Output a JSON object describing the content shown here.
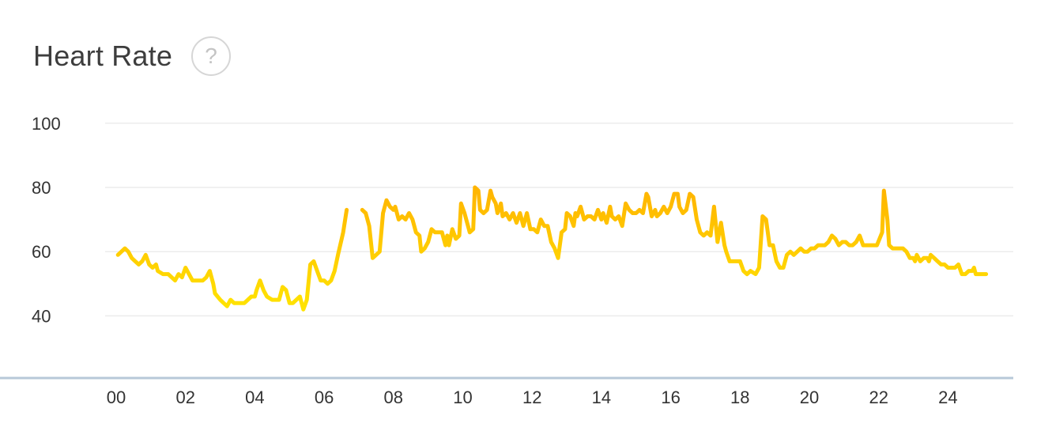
{
  "header": {
    "title": "Heart Rate",
    "help_label": "?"
  },
  "colors": {
    "line_low": "#ffe600",
    "line_high": "#ffb400",
    "grid": "#ececec",
    "baseline": "#b7c8d8",
    "tick_text": "#333333"
  },
  "chart_data": {
    "type": "line",
    "title": "Heart Rate",
    "xlabel": "",
    "ylabel": "",
    "xlim": [
      0,
      24
    ],
    "ylim": [
      30,
      100
    ],
    "y_ticks": [
      100,
      80,
      60,
      40
    ],
    "x_ticks": [
      "00",
      "02",
      "04",
      "06",
      "08",
      "10",
      "12",
      "14",
      "16",
      "18",
      "20",
      "22",
      "24"
    ],
    "grid": true,
    "series": [
      {
        "segments": [
          [
            [
              0.05,
              59
            ],
            [
              0.15,
              60
            ],
            [
              0.25,
              61
            ],
            [
              0.35,
              60
            ],
            [
              0.45,
              58
            ],
            [
              0.55,
              57
            ],
            [
              0.65,
              56
            ],
            [
              0.75,
              57
            ],
            [
              0.85,
              59
            ],
            [
              0.95,
              56
            ],
            [
              1.05,
              55
            ],
            [
              1.15,
              56
            ],
            [
              1.2,
              54
            ],
            [
              1.35,
              53
            ],
            [
              1.5,
              53
            ],
            [
              1.6,
              52
            ],
            [
              1.7,
              51
            ],
            [
              1.8,
              53
            ],
            [
              1.9,
              52
            ],
            [
              2.0,
              55
            ],
            [
              2.1,
              53
            ],
            [
              2.2,
              51
            ],
            [
              2.35,
              51
            ],
            [
              2.5,
              51
            ],
            [
              2.6,
              52
            ],
            [
              2.7,
              54
            ],
            [
              2.8,
              50
            ],
            [
              2.85,
              47
            ],
            [
              3.0,
              45
            ],
            [
              3.1,
              44
            ],
            [
              3.2,
              43
            ],
            [
              3.3,
              45
            ],
            [
              3.4,
              44
            ],
            [
              3.5,
              44
            ],
            [
              3.6,
              44
            ],
            [
              3.7,
              44
            ],
            [
              3.8,
              45
            ],
            [
              3.9,
              46
            ],
            [
              4.0,
              46
            ],
            [
              4.05,
              48
            ],
            [
              4.15,
              51
            ],
            [
              4.25,
              48
            ],
            [
              4.35,
              46
            ],
            [
              4.5,
              45
            ],
            [
              4.6,
              45
            ],
            [
              4.7,
              45
            ],
            [
              4.8,
              49
            ],
            [
              4.9,
              48
            ],
            [
              5.0,
              44
            ],
            [
              5.1,
              44
            ],
            [
              5.2,
              45
            ],
            [
              5.3,
              46
            ],
            [
              5.4,
              42
            ],
            [
              5.5,
              45
            ],
            [
              5.6,
              56
            ],
            [
              5.7,
              57
            ],
            [
              5.8,
              54
            ],
            [
              5.9,
              51
            ],
            [
              6.0,
              51
            ],
            [
              6.1,
              50
            ],
            [
              6.2,
              51
            ],
            [
              6.3,
              54
            ],
            [
              6.4,
              59
            ],
            [
              6.55,
              66
            ],
            [
              6.65,
              73
            ]
          ],
          [
            [
              7.1,
              73
            ],
            [
              7.2,
              72
            ],
            [
              7.3,
              68
            ],
            [
              7.4,
              58
            ],
            [
              7.5,
              59
            ],
            [
              7.6,
              60
            ],
            [
              7.7,
              72
            ],
            [
              7.8,
              76
            ],
            [
              7.9,
              74
            ],
            [
              8.0,
              73
            ],
            [
              8.05,
              74
            ],
            [
              8.15,
              70
            ],
            [
              8.25,
              71
            ],
            [
              8.35,
              70
            ],
            [
              8.45,
              72
            ],
            [
              8.55,
              70
            ],
            [
              8.65,
              66
            ],
            [
              8.75,
              65
            ],
            [
              8.8,
              60
            ],
            [
              8.9,
              61
            ],
            [
              9.0,
              63
            ],
            [
              9.1,
              67
            ],
            [
              9.2,
              66
            ],
            [
              9.3,
              66
            ],
            [
              9.4,
              66
            ],
            [
              9.5,
              62
            ],
            [
              9.55,
              65
            ],
            [
              9.6,
              62
            ],
            [
              9.7,
              67
            ],
            [
              9.8,
              64
            ],
            [
              9.9,
              65
            ],
            [
              9.95,
              75
            ],
            [
              10.05,
              72
            ],
            [
              10.15,
              68
            ],
            [
              10.2,
              66
            ],
            [
              10.3,
              67
            ],
            [
              10.35,
              80
            ],
            [
              10.45,
              79
            ],
            [
              10.5,
              73
            ],
            [
              10.6,
              72
            ],
            [
              10.7,
              73
            ],
            [
              10.8,
              79
            ],
            [
              10.85,
              77
            ],
            [
              10.95,
              75
            ],
            [
              11.0,
              72
            ],
            [
              11.1,
              75
            ],
            [
              11.15,
              71
            ],
            [
              11.25,
              72
            ],
            [
              11.35,
              70
            ],
            [
              11.45,
              72
            ],
            [
              11.55,
              69
            ],
            [
              11.65,
              72
            ],
            [
              11.75,
              68
            ],
            [
              11.85,
              72
            ],
            [
              11.95,
              67
            ],
            [
              12.05,
              67
            ],
            [
              12.15,
              66
            ],
            [
              12.25,
              70
            ],
            [
              12.35,
              68
            ],
            [
              12.45,
              68
            ],
            [
              12.55,
              63
            ],
            [
              12.65,
              61
            ],
            [
              12.75,
              58
            ],
            [
              12.85,
              66
            ],
            [
              12.95,
              67
            ],
            [
              13.0,
              72
            ],
            [
              13.1,
              71
            ],
            [
              13.2,
              68
            ],
            [
              13.25,
              72
            ],
            [
              13.3,
              71
            ],
            [
              13.4,
              74
            ],
            [
              13.5,
              70
            ],
            [
              13.6,
              71
            ],
            [
              13.7,
              71
            ],
            [
              13.8,
              70
            ],
            [
              13.9,
              73
            ],
            [
              14.0,
              70
            ],
            [
              14.05,
              72
            ],
            [
              14.15,
              69
            ],
            [
              14.25,
              74
            ],
            [
              14.3,
              71
            ],
            [
              14.4,
              70
            ],
            [
              14.5,
              71
            ],
            [
              14.6,
              68
            ],
            [
              14.7,
              75
            ],
            [
              14.8,
              73
            ],
            [
              14.9,
              72
            ],
            [
              15.0,
              72
            ],
            [
              15.1,
              73
            ],
            [
              15.2,
              72
            ],
            [
              15.3,
              78
            ],
            [
              15.35,
              77
            ],
            [
              15.45,
              71
            ],
            [
              15.55,
              73
            ],
            [
              15.6,
              71
            ],
            [
              15.7,
              72
            ],
            [
              15.8,
              74
            ],
            [
              15.9,
              72
            ],
            [
              16.0,
              74
            ],
            [
              16.1,
              78
            ],
            [
              16.2,
              78
            ],
            [
              16.25,
              74
            ],
            [
              16.35,
              72
            ],
            [
              16.45,
              73
            ],
            [
              16.55,
              78
            ],
            [
              16.65,
              77
            ],
            [
              16.75,
              70
            ],
            [
              16.85,
              66
            ],
            [
              16.95,
              65
            ],
            [
              17.05,
              66
            ],
            [
              17.15,
              65
            ],
            [
              17.25,
              74
            ],
            [
              17.35,
              63
            ],
            [
              17.45,
              69
            ],
            [
              17.55,
              62
            ],
            [
              17.6,
              60
            ],
            [
              17.7,
              57
            ],
            [
              17.9,
              57
            ],
            [
              18.0,
              57
            ],
            [
              18.1,
              54
            ],
            [
              18.2,
              53
            ],
            [
              18.3,
              54
            ],
            [
              18.45,
              53
            ],
            [
              18.55,
              55
            ],
            [
              18.65,
              71
            ],
            [
              18.75,
              70
            ],
            [
              18.85,
              62
            ],
            [
              18.95,
              62
            ],
            [
              19.05,
              57
            ],
            [
              19.15,
              55
            ],
            [
              19.25,
              55
            ],
            [
              19.35,
              59
            ],
            [
              19.45,
              60
            ],
            [
              19.55,
              59
            ],
            [
              19.65,
              60
            ],
            [
              19.75,
              61
            ],
            [
              19.85,
              60
            ],
            [
              19.95,
              60
            ],
            [
              20.05,
              61
            ],
            [
              20.15,
              61
            ],
            [
              20.25,
              62
            ],
            [
              20.35,
              62
            ],
            [
              20.45,
              62
            ],
            [
              20.55,
              63
            ],
            [
              20.65,
              65
            ],
            [
              20.75,
              64
            ],
            [
              20.85,
              62
            ],
            [
              20.95,
              63
            ],
            [
              21.05,
              63
            ],
            [
              21.15,
              62
            ],
            [
              21.25,
              62
            ],
            [
              21.35,
              63
            ],
            [
              21.45,
              65
            ],
            [
              21.55,
              62
            ],
            [
              21.65,
              62
            ],
            [
              21.75,
              62
            ],
            [
              21.85,
              62
            ],
            [
              21.95,
              62
            ],
            [
              22.1,
              66
            ],
            [
              22.15,
              79
            ],
            [
              22.25,
              70
            ],
            [
              22.3,
              62
            ],
            [
              22.4,
              61
            ],
            [
              22.5,
              61
            ],
            [
              22.6,
              61
            ],
            [
              22.7,
              61
            ],
            [
              22.8,
              60
            ],
            [
              22.9,
              58
            ],
            [
              23.0,
              58
            ],
            [
              23.05,
              57
            ],
            [
              23.1,
              59
            ],
            [
              23.2,
              57
            ],
            [
              23.3,
              58
            ],
            [
              23.4,
              58
            ],
            [
              23.45,
              57
            ],
            [
              23.5,
              59
            ],
            [
              23.6,
              58
            ],
            [
              23.7,
              57
            ],
            [
              23.8,
              56
            ],
            [
              23.9,
              56
            ],
            [
              24.0,
              55
            ],
            [
              24.1,
              55
            ],
            [
              24.2,
              55
            ],
            [
              24.3,
              56
            ],
            [
              24.4,
              53
            ],
            [
              24.5,
              53
            ],
            [
              24.6,
              54
            ],
            [
              24.7,
              54
            ],
            [
              24.75,
              55
            ],
            [
              24.8,
              53
            ],
            [
              24.9,
              53
            ],
            [
              25.0,
              53
            ],
            [
              25.1,
              53
            ]
          ]
        ]
      }
    ]
  }
}
